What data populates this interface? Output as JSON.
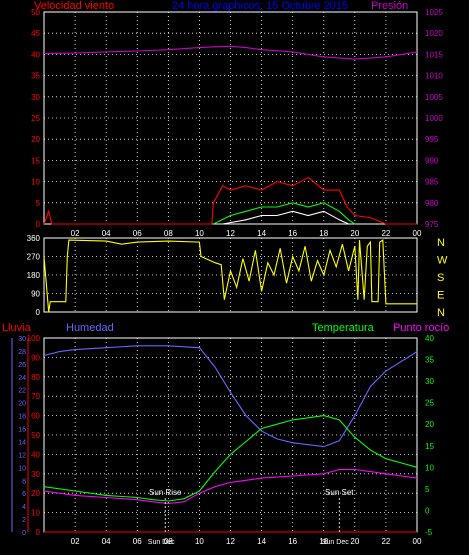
{
  "chart_data": [
    {
      "type": "line",
      "title": "24 hora graphicos:  15 Octubre 2015",
      "left_axis": {
        "label": "Velocidad viento",
        "color": "#ff0000",
        "range": [
          0,
          50
        ],
        "ticks": [
          0,
          5,
          10,
          15,
          20,
          25,
          30,
          35,
          40,
          45,
          50
        ]
      },
      "right_axis": {
        "label": "Presión",
        "color": "#cc00cc",
        "range": [
          975,
          1025
        ],
        "ticks": [
          975,
          980,
          985,
          990,
          995,
          1000,
          1005,
          1010,
          1015,
          1020,
          1025
        ]
      },
      "x_ticks": [
        "02",
        "04",
        "06",
        "08",
        "10",
        "12",
        "14",
        "16",
        "18",
        "20",
        "22",
        "00"
      ],
      "series": [
        {
          "name": "Presión",
          "color": "#cc00cc",
          "axis": "right",
          "points": [
            [
              0,
              1015.2
            ],
            [
              2,
              1015.3
            ],
            [
              4,
              1015.6
            ],
            [
              6,
              1015.8
            ],
            [
              8,
              1016.1
            ],
            [
              10,
              1016.6
            ],
            [
              11,
              1016.8
            ],
            [
              12,
              1016.9
            ],
            [
              13,
              1016.6
            ],
            [
              14,
              1016.1
            ],
            [
              16,
              1015.6
            ],
            [
              18,
              1014.4
            ],
            [
              20,
              1013.9
            ],
            [
              22,
              1014.4
            ],
            [
              23,
              1015.0
            ],
            [
              24,
              1015.6
            ]
          ]
        },
        {
          "color": "#ff0000",
          "axis": "left",
          "points": [
            [
              0,
              0
            ],
            [
              0.3,
              3
            ],
            [
              0.5,
              0
            ],
            [
              10.8,
              0
            ],
            [
              10.9,
              5
            ],
            [
              11.5,
              9
            ],
            [
              12,
              8
            ],
            [
              13,
              9
            ],
            [
              14,
              8
            ],
            [
              15,
              10
            ],
            [
              16,
              9
            ],
            [
              17,
              11
            ],
            [
              18,
              8
            ],
            [
              19,
              8
            ],
            [
              19.5,
              4
            ],
            [
              20,
              2
            ],
            [
              21,
              1.5
            ],
            [
              22,
              0
            ],
            [
              24,
              0
            ]
          ]
        },
        {
          "color": "#00ff00",
          "axis": "left",
          "points": [
            [
              10.9,
              0
            ],
            [
              12,
              2
            ],
            [
              13,
              3
            ],
            [
              14,
              4
            ],
            [
              15,
              4
            ],
            [
              16,
              5
            ],
            [
              17,
              4
            ],
            [
              18,
              5
            ],
            [
              19,
              3
            ],
            [
              19.6,
              1
            ],
            [
              20,
              0
            ]
          ]
        },
        {
          "color": "#ffffff",
          "axis": "left",
          "points": [
            [
              11.5,
              0
            ],
            [
              13,
              1
            ],
            [
              14,
              2
            ],
            [
              15,
              2
            ],
            [
              16,
              3
            ],
            [
              17,
              2
            ],
            [
              18,
              3
            ],
            [
              19,
              1
            ],
            [
              19.6,
              0
            ]
          ]
        }
      ]
    },
    {
      "type": "line",
      "left_axis": {
        "range": [
          0,
          360
        ],
        "ticks": [
          0,
          90,
          180,
          270,
          360
        ]
      },
      "right_axis": {
        "labels": [
          "N",
          "W",
          "S",
          "E",
          "N"
        ]
      },
      "series": [
        {
          "color": "#ffff00",
          "points": [
            [
              0,
              270
            ],
            [
              0.3,
              0
            ],
            [
              0.4,
              50
            ],
            [
              1.4,
              50
            ],
            [
              1.5,
              270
            ],
            [
              1.6,
              350
            ],
            [
              4,
              345
            ],
            [
              5,
              330
            ],
            [
              6,
              340
            ],
            [
              8,
              345
            ],
            [
              10,
              340
            ],
            [
              10.1,
              270
            ],
            [
              11,
              240
            ],
            [
              11.4,
              230
            ],
            [
              11.6,
              60
            ],
            [
              12,
              200
            ],
            [
              12.4,
              120
            ],
            [
              12.8,
              260
            ],
            [
              13.2,
              150
            ],
            [
              13.6,
              300
            ],
            [
              14,
              100
            ],
            [
              14.4,
              240
            ],
            [
              14.8,
              180
            ],
            [
              15.2,
              310
            ],
            [
              15.6,
              140
            ],
            [
              16,
              270
            ],
            [
              16.4,
              200
            ],
            [
              16.8,
              320
            ],
            [
              17.2,
              150
            ],
            [
              17.6,
              250
            ],
            [
              18,
              180
            ],
            [
              18.4,
              300
            ],
            [
              18.8,
              220
            ],
            [
              19.2,
              330
            ],
            [
              19.6,
              200
            ],
            [
              20,
              320
            ],
            [
              20.2,
              60
            ],
            [
              20.3,
              350
            ],
            [
              20.6,
              60
            ],
            [
              20.8,
              320
            ],
            [
              21,
              340
            ],
            [
              21.1,
              50
            ],
            [
              21.5,
              50
            ],
            [
              21.6,
              340
            ],
            [
              21.8,
              350
            ],
            [
              22,
              40
            ],
            [
              24,
              40
            ]
          ]
        }
      ]
    },
    {
      "type": "line",
      "left_axis": {
        "label": "Lluvia",
        "color": "#ff0000",
        "range": [
          0,
          100
        ],
        "ticks": [
          0,
          10,
          20,
          30,
          40,
          50,
          60,
          70,
          80,
          90,
          100
        ]
      },
      "left_axis2": {
        "label": "Humedad",
        "color": "#6666ff",
        "range": [
          0,
          30
        ],
        "ticks": [
          0,
          2,
          4,
          6,
          8,
          10,
          12,
          14,
          16,
          18,
          20,
          22,
          24,
          26,
          28,
          30
        ]
      },
      "right_axis": {
        "label": "Temperatura",
        "label2": "Punto rocío",
        "color": "#00ff00",
        "range": [
          -5,
          40
        ],
        "ticks": [
          -5,
          0,
          5,
          10,
          15,
          20,
          25,
          30,
          35,
          40
        ]
      },
      "annotations": [
        {
          "text": "Sun Rise",
          "x": 7.8
        },
        {
          "text": "Sun Set",
          "x": 19.0
        },
        {
          "text": "Sun Dec",
          "x": 7.8
        },
        {
          "text": "Sun Dec",
          "x": 19.0
        }
      ],
      "x_ticks": [
        "02",
        "04",
        "06",
        "08",
        "10",
        "12",
        "14",
        "16",
        "18",
        "20",
        "22",
        "00"
      ],
      "series": [
        {
          "name": "Humedad",
          "color": "#6666ff",
          "axis": "left",
          "points": [
            [
              0,
              91
            ],
            [
              1,
              93
            ],
            [
              2,
              94
            ],
            [
              4,
              95
            ],
            [
              6,
              96
            ],
            [
              8,
              96
            ],
            [
              10,
              95
            ],
            [
              11,
              85
            ],
            [
              12,
              72
            ],
            [
              13,
              60
            ],
            [
              14,
              52
            ],
            [
              15,
              48
            ],
            [
              16,
              46
            ],
            [
              17,
              45
            ],
            [
              18,
              44
            ],
            [
              19,
              47
            ],
            [
              20,
              60
            ],
            [
              21,
              75
            ],
            [
              22,
              83
            ],
            [
              23,
              88
            ],
            [
              24,
              93
            ]
          ]
        },
        {
          "name": "Temperatura",
          "color": "#00ff00",
          "axis": "right",
          "points": [
            [
              0,
              5.5
            ],
            [
              2,
              4.5
            ],
            [
              4,
              3.5
            ],
            [
              6,
              3.0
            ],
            [
              7,
              2.5
            ],
            [
              8,
              2.2
            ],
            [
              9,
              2.7
            ],
            [
              10,
              4.5
            ],
            [
              11,
              9
            ],
            [
              12,
              13
            ],
            [
              13,
              16
            ],
            [
              14,
              19
            ],
            [
              15,
              20
            ],
            [
              16,
              21
            ],
            [
              17,
              21.5
            ],
            [
              18,
              22
            ],
            [
              19,
              21
            ],
            [
              20,
              17
            ],
            [
              21,
              14
            ],
            [
              22,
              12
            ],
            [
              23,
              11
            ],
            [
              24,
              10
            ]
          ]
        },
        {
          "name": "Punto rocío",
          "color": "#ff00ff",
          "axis": "right",
          "points": [
            [
              0,
              4.5
            ],
            [
              2,
              3.5
            ],
            [
              4,
              3.0
            ],
            [
              6,
              2.5
            ],
            [
              7,
              2.0
            ],
            [
              8,
              1.6
            ],
            [
              9,
              2.0
            ],
            [
              10,
              4.0
            ],
            [
              11,
              5.5
            ],
            [
              12,
              6.5
            ],
            [
              14,
              7.5
            ],
            [
              16,
              8.0
            ],
            [
              18,
              8.5
            ],
            [
              19,
              9.5
            ],
            [
              20,
              9.5
            ],
            [
              21,
              9
            ],
            [
              22,
              8.5
            ],
            [
              23,
              8
            ],
            [
              24,
              7.5
            ]
          ]
        },
        {
          "name": "Lluvia",
          "color": "#ff0000",
          "axis": "left",
          "points": [
            [
              0,
              0
            ],
            [
              24,
              0
            ]
          ]
        }
      ]
    }
  ]
}
